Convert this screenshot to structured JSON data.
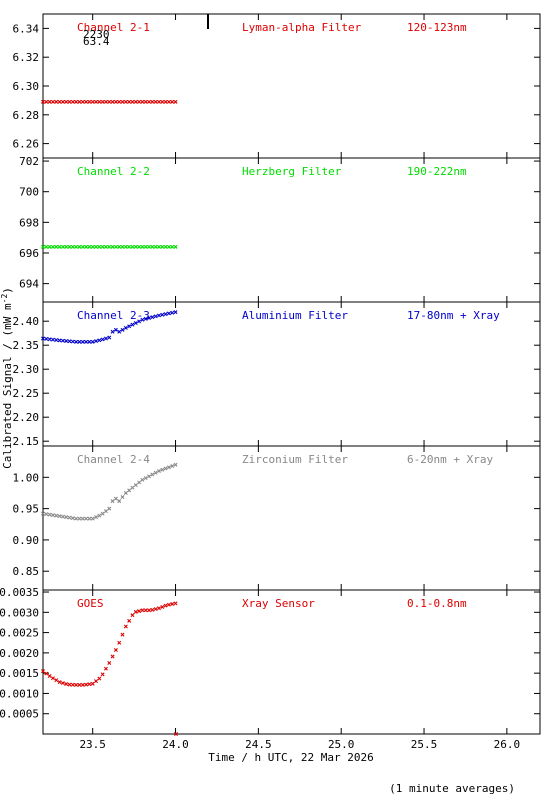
{
  "figure": {
    "xlabel": "Time / h UTC, 22 Mar 2026",
    "ylabel": "Calibrated Signal / (mW m",
    "ylabel_sup": "-2",
    "ylabel_close": ")",
    "footnote": "(1 minute averages)",
    "overlay_text": [
      "2230",
      "63.4"
    ]
  },
  "chart_data": [
    {
      "type": "scatter",
      "channel": "Channel 2-1",
      "filter": "Lyman-alpha Filter",
      "band": "120-123nm",
      "color": "#dd0000",
      "xlim": [
        23.2,
        26.2
      ],
      "ylim": [
        6.25,
        6.35
      ],
      "yticks": [
        "6.26",
        "6.28",
        "6.30",
        "6.32",
        "6.34"
      ],
      "x": [
        23.2,
        24.0
      ],
      "y": [
        6.289,
        6.289
      ]
    },
    {
      "type": "scatter",
      "channel": "Channel 2-2",
      "filter": "Herzberg Filter",
      "band": "190-222nm",
      "color": "#00dd00",
      "xlim": [
        23.2,
        26.2
      ],
      "ylim": [
        692.8,
        702.2
      ],
      "yticks": [
        "694",
        "696",
        "698",
        "700",
        "702"
      ],
      "x": [
        23.2,
        24.0
      ],
      "y": [
        696.4,
        696.4
      ]
    },
    {
      "type": "scatter",
      "channel": "Channel 2-3",
      "filter": "Aluminium Filter",
      "band": "17-80nm + Xray",
      "color": "#0000cc",
      "xlim": [
        23.2,
        26.2
      ],
      "ylim": [
        2.14,
        2.44
      ],
      "yticks": [
        "2.15",
        "2.20",
        "2.25",
        "2.30",
        "2.35",
        "2.40"
      ],
      "x": [
        23.2,
        23.3,
        23.4,
        23.5,
        23.55,
        23.6,
        23.63,
        23.66,
        23.7,
        23.8,
        23.9,
        24.0
      ],
      "y": [
        2.364,
        2.36,
        2.357,
        2.357,
        2.361,
        2.366,
        2.384,
        2.378,
        2.386,
        2.403,
        2.412,
        2.419
      ]
    },
    {
      "type": "scatter",
      "channel": "Channel 2-4",
      "filter": "Zirconium Filter",
      "band": "6-20nm + Xray",
      "color": "#888888",
      "xlim": [
        23.2,
        26.2
      ],
      "ylim": [
        0.82,
        1.05
      ],
      "yticks": [
        "0.85",
        "0.90",
        "0.95",
        "1.00"
      ],
      "x": [
        23.2,
        23.3,
        23.4,
        23.5,
        23.55,
        23.6,
        23.63,
        23.66,
        23.7,
        23.8,
        23.9,
        24.0
      ],
      "y": [
        0.942,
        0.938,
        0.934,
        0.934,
        0.94,
        0.95,
        0.968,
        0.962,
        0.975,
        0.996,
        1.01,
        1.02
      ]
    },
    {
      "type": "scatter",
      "channel": "GOES",
      "filter": "Xray Sensor",
      "band": "0.1-0.8nm",
      "color": "#dd0000",
      "xlim": [
        23.2,
        26.2
      ],
      "ylim": [
        0.0,
        0.00355
      ],
      "yticks": [
        "0.0005",
        "0.0010",
        "0.0015",
        "0.0020",
        "0.0025",
        "0.0030",
        "0.0035"
      ],
      "x": [
        23.2,
        23.25,
        23.3,
        23.35,
        23.4,
        23.45,
        23.5,
        23.55,
        23.6,
        23.65,
        23.7,
        23.75,
        23.8,
        23.85,
        23.9,
        23.95,
        24.0
      ],
      "y": [
        0.00155,
        0.0014,
        0.00128,
        0.00122,
        0.00121,
        0.00121,
        0.00124,
        0.0014,
        0.00175,
        0.00215,
        0.00265,
        0.003,
        0.00305,
        0.00305,
        0.0031,
        0.00318,
        0.00322
      ]
    }
  ],
  "xticks": [
    "23.5",
    "24.0",
    "24.5",
    "25.0",
    "25.5",
    "26.0"
  ],
  "xtick_values": [
    23.5,
    24.0,
    24.5,
    25.0,
    25.5,
    26.0
  ]
}
